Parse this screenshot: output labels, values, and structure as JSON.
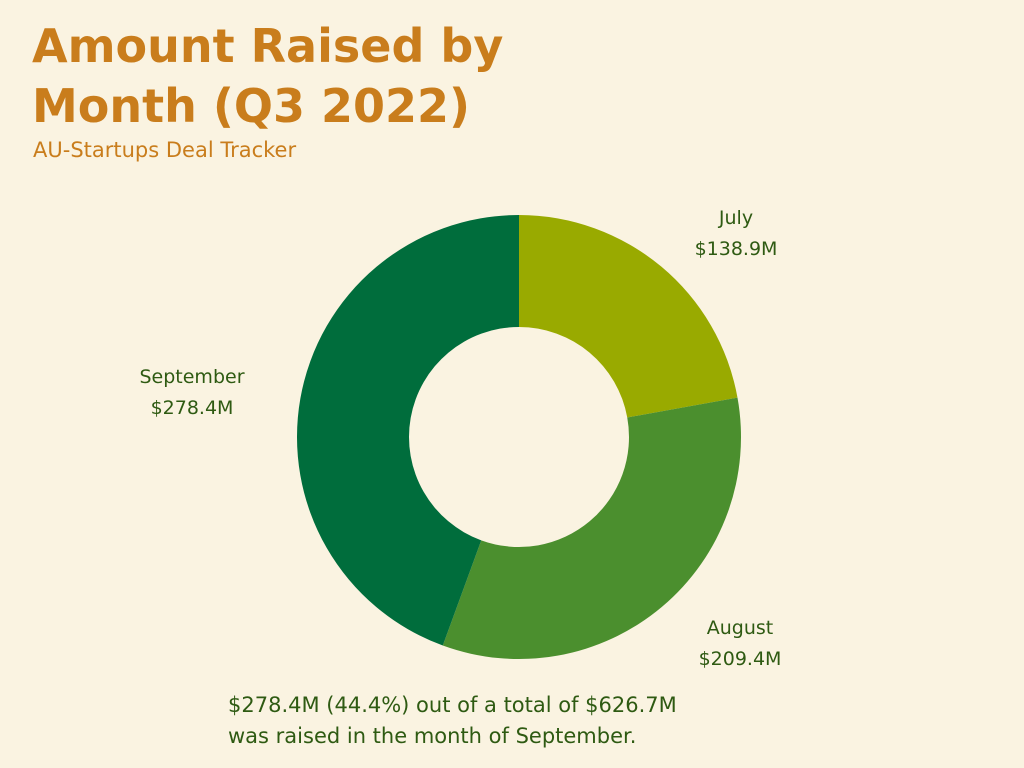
{
  "title": "Amount Raised by Month (Q3 2022)",
  "subtitle": "AU-Startups Deal Tracker",
  "chart_data": {
    "type": "pie",
    "variant": "donut",
    "title": "Amount Raised by Month (Q3 2022)",
    "subtitle": "AU-Startups Deal Tracker",
    "categories": [
      "July",
      "August",
      "September"
    ],
    "values": [
      138.9,
      209.4,
      278.4
    ],
    "value_labels": [
      "$138.9M",
      "$209.4M",
      "$278.4M"
    ],
    "colors": [
      "#99aa00",
      "#4b8f2e",
      "#006d3c"
    ],
    "legend": "none"
  },
  "footnote": {
    "line1": "$278.4M (44.4%) out of a total of $626.7M",
    "line2": "was raised in the month of September."
  }
}
